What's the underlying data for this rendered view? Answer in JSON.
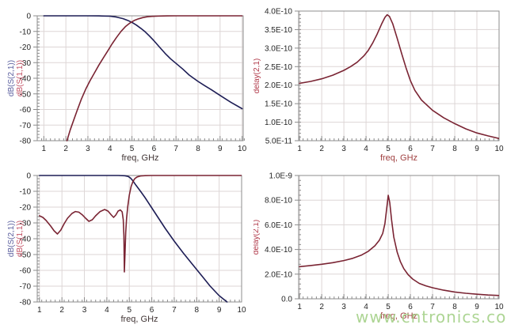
{
  "watermark": {
    "text": "www.cntronics.com",
    "color": "#a7d28b"
  },
  "colors": {
    "blue": "#1d1d55",
    "red": "#7a2433",
    "labelBlue": "#5a5e9e",
    "labelRed": "#c24f62",
    "labelDelay": "#b03848",
    "axisText": "#252525",
    "freqLabelLeft": "#403434",
    "freqLabelRight": "#a04040",
    "grid": "#ddd6d6",
    "frame": "#8c8c8c"
  },
  "chart_data": [
    {
      "type": "line",
      "title": "",
      "xlabel": "freq, GHz",
      "xlabel_color_key": "freqLabelLeft",
      "ylabels": [
        {
          "text": "dB(S(2,1))",
          "color_key": "labelBlue"
        },
        {
          "text": "dB(S(1,1))",
          "color_key": "labelRed"
        }
      ],
      "ylabels_x": [
        17,
        28
      ],
      "plot": {
        "l": 47,
        "t": 20,
        "r": 307,
        "b": 178
      },
      "xlim": [
        0.7,
        10.05
      ],
      "ylim": [
        -80,
        0
      ],
      "xticks": {
        "values": [
          1,
          2,
          3,
          4,
          5,
          6,
          7,
          8,
          9,
          10
        ],
        "labels": [
          "1",
          "2",
          "3",
          "4",
          "5",
          "6",
          "7",
          "8",
          "9",
          "10"
        ]
      },
      "yticks": {
        "values": [
          0,
          -10,
          -20,
          -30,
          -40,
          -50,
          -60,
          -70,
          -80
        ],
        "labels": [
          "0",
          "-10",
          "-20",
          "-30",
          "-40",
          "-50",
          "-60",
          "-70",
          "-80"
        ]
      },
      "xminor": 0.2,
      "yminor": 2,
      "grid_on": true,
      "series": [
        {
          "key": "s21",
          "name": "dB(S(2,1))",
          "color_key": "blue",
          "points": [
            [
              1,
              0
            ],
            [
              2,
              0
            ],
            [
              3,
              0
            ],
            [
              3.5,
              -0.05
            ],
            [
              4,
              -0.2
            ],
            [
              4.3,
              -0.8
            ],
            [
              4.6,
              -1.8
            ],
            [
              4.8,
              -2.9
            ],
            [
              5,
              -4.2
            ],
            [
              5.2,
              -5.9
            ],
            [
              5.4,
              -8
            ],
            [
              5.6,
              -10.3
            ],
            [
              5.8,
              -13
            ],
            [
              6,
              -16
            ],
            [
              6.25,
              -20
            ],
            [
              6.5,
              -24
            ],
            [
              6.75,
              -27.5
            ],
            [
              7,
              -30.5
            ],
            [
              7.3,
              -34
            ],
            [
              7.6,
              -38
            ],
            [
              8,
              -42
            ],
            [
              8.3,
              -44.7
            ],
            [
              8.6,
              -47.3
            ],
            [
              9,
              -51
            ],
            [
              9.5,
              -55.5
            ],
            [
              10,
              -59.5
            ]
          ]
        },
        {
          "key": "s11",
          "name": "dB(S(1,1))",
          "color_key": "red",
          "points": [
            [
              2.05,
              -80
            ],
            [
              2.2,
              -73
            ],
            [
              2.35,
              -67
            ],
            [
              2.5,
              -61
            ],
            [
              2.7,
              -53.5
            ],
            [
              2.9,
              -47
            ],
            [
              3.1,
              -41.5
            ],
            [
              3.3,
              -36.5
            ],
            [
              3.5,
              -31.5
            ],
            [
              3.7,
              -27
            ],
            [
              3.9,
              -22.5
            ],
            [
              4.1,
              -18
            ],
            [
              4.3,
              -13.8
            ],
            [
              4.5,
              -10
            ],
            [
              4.7,
              -7
            ],
            [
              4.9,
              -4.7
            ],
            [
              5.1,
              -3
            ],
            [
              5.3,
              -1.9
            ],
            [
              5.5,
              -1.1
            ],
            [
              5.7,
              -0.6
            ],
            [
              5.9,
              -0.35
            ],
            [
              6.2,
              -0.15
            ],
            [
              6.6,
              -0.05
            ],
            [
              7,
              0
            ],
            [
              8,
              0
            ],
            [
              9,
              0
            ],
            [
              10,
              0
            ]
          ]
        }
      ]
    },
    {
      "type": "line",
      "title": "",
      "xlabel": "freq, GHz",
      "xlabel_color_key": "freqLabelRight",
      "ylabels": [
        {
          "text": "delay(2,1)",
          "color_key": "labelDelay"
        }
      ],
      "ylabels_x": [
        7
      ],
      "plot": {
        "l": 57,
        "t": 14,
        "r": 310,
        "b": 178
      },
      "xlim": [
        0.96,
        10
      ],
      "ylim": [
        5e-11,
        4e-10
      ],
      "xticks": {
        "values": [
          1,
          2,
          3,
          4,
          5,
          6,
          7,
          8,
          9,
          10
        ],
        "labels": [
          "1",
          "2",
          "3",
          "4",
          "5",
          "6",
          "7",
          "8",
          "9",
          "10"
        ]
      },
      "yticks": {
        "values": [
          5e-11,
          1e-10,
          1.5e-10,
          2e-10,
          2.5e-10,
          3e-10,
          3.5e-10,
          4e-10
        ],
        "labels": [
          "5.0E-11",
          "1.0E-10",
          "1.5E-10",
          "2.0E-10",
          "2.5E-10",
          "3.0E-10",
          "3.5E-10",
          "4.0E-10"
        ]
      },
      "xminor": 0.2,
      "yminor": 1e-11,
      "grid_on": true,
      "series": [
        {
          "key": "delay",
          "name": "delay(2,1)",
          "color_key": "red",
          "points": [
            [
              1,
              2.05e-10
            ],
            [
              1.5,
              2.1e-10
            ],
            [
              2,
              2.17e-10
            ],
            [
              2.5,
              2.27e-10
            ],
            [
              3,
              2.4e-10
            ],
            [
              3.3,
              2.5e-10
            ],
            [
              3.6,
              2.62e-10
            ],
            [
              3.9,
              2.79e-10
            ],
            [
              4.1,
              2.94e-10
            ],
            [
              4.3,
              3.14e-10
            ],
            [
              4.5,
              3.38e-10
            ],
            [
              4.7,
              3.65e-10
            ],
            [
              4.85,
              3.83e-10
            ],
            [
              4.95,
              3.9e-10
            ],
            [
              5.05,
              3.86e-10
            ],
            [
              5.2,
              3.66e-10
            ],
            [
              5.4,
              3.27e-10
            ],
            [
              5.6,
              2.86e-10
            ],
            [
              5.8,
              2.47e-10
            ],
            [
              6,
              2.12e-10
            ],
            [
              6.2,
              1.86e-10
            ],
            [
              6.5,
              1.6e-10
            ],
            [
              7,
              1.32e-10
            ],
            [
              7.5,
              1.12e-10
            ],
            [
              8,
              9.6e-11
            ],
            [
              8.5,
              8.2e-11
            ],
            [
              9,
              7.1e-11
            ],
            [
              9.5,
              6.3e-11
            ],
            [
              10,
              5.6e-11
            ]
          ]
        }
      ]
    },
    {
      "type": "line",
      "title": "",
      "xlabel": "freq, GHz",
      "xlabel_color_key": "freqLabelLeft",
      "ylabels": [
        {
          "text": "dB(S(2,1))",
          "color_key": "labelBlue"
        },
        {
          "text": "dB(S(1,1))",
          "color_key": "labelRed"
        }
      ],
      "ylabels_x": [
        17,
        28
      ],
      "plot": {
        "l": 47,
        "t": 12,
        "r": 305,
        "b": 172
      },
      "xlim": [
        0.9,
        10
      ],
      "ylim": [
        -80,
        0
      ],
      "xticks": {
        "values": [
          1,
          2,
          3,
          4,
          5,
          6,
          7,
          8,
          9,
          10
        ],
        "labels": [
          "1",
          "2",
          "3",
          "4",
          "5",
          "6",
          "7",
          "8",
          "9",
          "10"
        ]
      },
      "yticks": {
        "values": [
          0,
          -10,
          -20,
          -30,
          -40,
          -50,
          -60,
          -70,
          -80
        ],
        "labels": [
          "0",
          "-10",
          "-20",
          "-30",
          "-40",
          "-50",
          "-60",
          "-70",
          "-80"
        ]
      },
      "xminor": 0.2,
      "yminor": 2,
      "grid_on": true,
      "series": [
        {
          "key": "s21",
          "name": "dB(S(2,1))",
          "color_key": "blue",
          "points": [
            [
              1,
              0
            ],
            [
              2,
              0
            ],
            [
              3,
              0
            ],
            [
              4,
              0
            ],
            [
              4.5,
              0
            ],
            [
              4.8,
              -0.15
            ],
            [
              4.95,
              -0.6
            ],
            [
              5.05,
              -1.6
            ],
            [
              5.15,
              -3.2
            ],
            [
              5.3,
              -6.2
            ],
            [
              5.5,
              -10
            ],
            [
              5.7,
              -14
            ],
            [
              6,
              -20.5
            ],
            [
              6.3,
              -27
            ],
            [
              6.6,
              -33.5
            ],
            [
              7,
              -41.5
            ],
            [
              7.4,
              -49
            ],
            [
              7.8,
              -56
            ],
            [
              8.2,
              -63
            ],
            [
              8.6,
              -70
            ],
            [
              9,
              -76
            ],
            [
              9.35,
              -80
            ]
          ]
        },
        {
          "key": "s11",
          "name": "dB(S(1,1))",
          "color_key": "red",
          "points": [
            [
              1,
              -25.5
            ],
            [
              1.15,
              -26.5
            ],
            [
              1.3,
              -28.5
            ],
            [
              1.5,
              -32
            ],
            [
              1.65,
              -35
            ],
            [
              1.8,
              -37
            ],
            [
              1.95,
              -34.5
            ],
            [
              2.1,
              -30.5
            ],
            [
              2.25,
              -27
            ],
            [
              2.45,
              -24
            ],
            [
              2.6,
              -22.8
            ],
            [
              2.75,
              -23.2
            ],
            [
              2.9,
              -24.8
            ],
            [
              3.05,
              -27
            ],
            [
              3.2,
              -29
            ],
            [
              3.35,
              -28
            ],
            [
              3.5,
              -25.5
            ],
            [
              3.7,
              -22.8
            ],
            [
              3.9,
              -21.5
            ],
            [
              4.05,
              -22.5
            ],
            [
              4.2,
              -25
            ],
            [
              4.3,
              -26.5
            ],
            [
              4.4,
              -25
            ],
            [
              4.5,
              -22.5
            ],
            [
              4.6,
              -21.8
            ],
            [
              4.68,
              -23
            ],
            [
              4.73,
              -28
            ],
            [
              4.76,
              -38
            ],
            [
              4.78,
              -61
            ],
            [
              4.81,
              -48
            ],
            [
              4.84,
              -36
            ],
            [
              4.88,
              -27
            ],
            [
              4.93,
              -19.5
            ],
            [
              5,
              -12.5
            ],
            [
              5.08,
              -7
            ],
            [
              5.16,
              -3.8
            ],
            [
              5.25,
              -1.9
            ],
            [
              5.35,
              -0.9
            ],
            [
              5.5,
              -0.3
            ],
            [
              5.7,
              -0.1
            ],
            [
              6,
              0
            ],
            [
              7,
              0
            ],
            [
              8,
              0
            ],
            [
              9,
              0
            ],
            [
              10,
              0
            ]
          ]
        }
      ]
    },
    {
      "type": "line",
      "title": "",
      "xlabel": "freq, GHz",
      "xlabel_color_key": "freqLabelRight",
      "ylabels": [
        {
          "text": "delay(2,1)",
          "color_key": "labelDelay"
        }
      ],
      "ylabels_x": [
        6
      ],
      "plot": {
        "l": 57,
        "t": 12,
        "r": 310,
        "b": 168
      },
      "xlim": [
        0.96,
        10
      ],
      "ylim": [
        0,
        1e-09
      ],
      "xticks": {
        "values": [
          1,
          2,
          3,
          4,
          5,
          6,
          7,
          8,
          9,
          10
        ],
        "labels": [
          "1",
          "2",
          "3",
          "4",
          "5",
          "6",
          "7",
          "8",
          "9",
          "10"
        ]
      },
      "yticks": {
        "values": [
          0,
          2e-10,
          4e-10,
          6e-10,
          8e-10,
          1e-09
        ],
        "labels": [
          "0.0",
          "2.0E-10",
          "4.0E-10",
          "6.0E-10",
          "8.0E-10",
          "1.0E-9"
        ]
      },
      "xminor": 0.2,
      "yminor": 4e-11,
      "grid_on": true,
      "series": [
        {
          "key": "delay",
          "name": "delay(2,1)",
          "color_key": "red",
          "points": [
            [
              1,
              2.6e-10
            ],
            [
              1.5,
              2.7e-10
            ],
            [
              2,
              2.8e-10
            ],
            [
              2.5,
              2.93e-10
            ],
            [
              3,
              3.1e-10
            ],
            [
              3.4,
              3.28e-10
            ],
            [
              3.8,
              3.55e-10
            ],
            [
              4.1,
              3.85e-10
            ],
            [
              4.4,
              4.3e-10
            ],
            [
              4.6,
              4.75e-10
            ],
            [
              4.75,
              5.3e-10
            ],
            [
              4.85,
              6.1e-10
            ],
            [
              4.93,
              7.3e-10
            ],
            [
              5,
              8.4e-10
            ],
            [
              5.07,
              7.8e-10
            ],
            [
              5.15,
              6.4e-10
            ],
            [
              5.25,
              5e-10
            ],
            [
              5.4,
              3.8e-10
            ],
            [
              5.55,
              3e-10
            ],
            [
              5.7,
              2.45e-10
            ],
            [
              5.9,
              1.95e-10
            ],
            [
              6.1,
              1.6e-10
            ],
            [
              6.4,
              1.25e-10
            ],
            [
              6.7,
              1.05e-10
            ],
            [
              7,
              9e-11
            ],
            [
              7.5,
              7e-11
            ],
            [
              8,
              5.5e-11
            ],
            [
              8.5,
              4.5e-11
            ],
            [
              9,
              3.7e-11
            ],
            [
              9.5,
              3.1e-11
            ],
            [
              10,
              2.7e-11
            ]
          ]
        }
      ]
    }
  ]
}
